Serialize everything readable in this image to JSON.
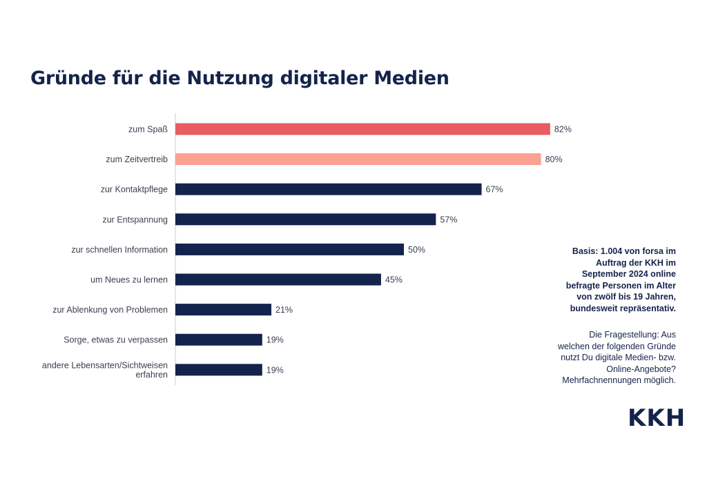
{
  "title": "Gründe für die Nutzung digitaler Medien",
  "chart_data": {
    "type": "bar",
    "orientation": "horizontal",
    "title": "Gründe für die Nutzung digitaler Medien",
    "unit": "%",
    "xlim": [
      0,
      100
    ],
    "categories": [
      [
        "zum Spaß"
      ],
      [
        "zum Zeitvertreib"
      ],
      [
        "zur Kontaktpflege"
      ],
      [
        "zur Entspannung"
      ],
      [
        "zur schnellen Information"
      ],
      [
        "um Neues zu lernen"
      ],
      [
        "zur Ablenkung von Problemen"
      ],
      [
        "Sorge, etwas zu verpassen"
      ],
      [
        "andere Lebensarten/Sichtweisen",
        "erfahren"
      ]
    ],
    "values": [
      82,
      80,
      67,
      57,
      50,
      45,
      21,
      19,
      19
    ],
    "value_labels": [
      "82%",
      "80%",
      "67%",
      "57%",
      "50%",
      "45%",
      "21%",
      "19%",
      "19%"
    ],
    "bar_colors": [
      "#e85c62",
      "#fba193",
      "#14234b",
      "#14234b",
      "#14234b",
      "#14234b",
      "#14234b",
      "#14234b",
      "#14234b"
    ]
  },
  "notes": {
    "basis_lines": [
      "Basis: 1.004 von forsa im",
      "Auftrag der KKH im",
      "September 2024 online",
      "befragte Personen im Alter",
      "von zwölf bis 19 Jahren,",
      "bundesweit repräsentativ."
    ],
    "question_lines": [
      "Die Fragestellung: Aus",
      "welchen der folgenden Gründe",
      "nutzt Du digitale Medien- bzw.",
      "Online-Angebote?",
      "Mehrfachnennungen möglich."
    ]
  },
  "logo": {
    "text": "KKH"
  },
  "colors": {
    "primary": "#14234b",
    "accent": "#e85c62",
    "accent_light": "#fba193"
  }
}
